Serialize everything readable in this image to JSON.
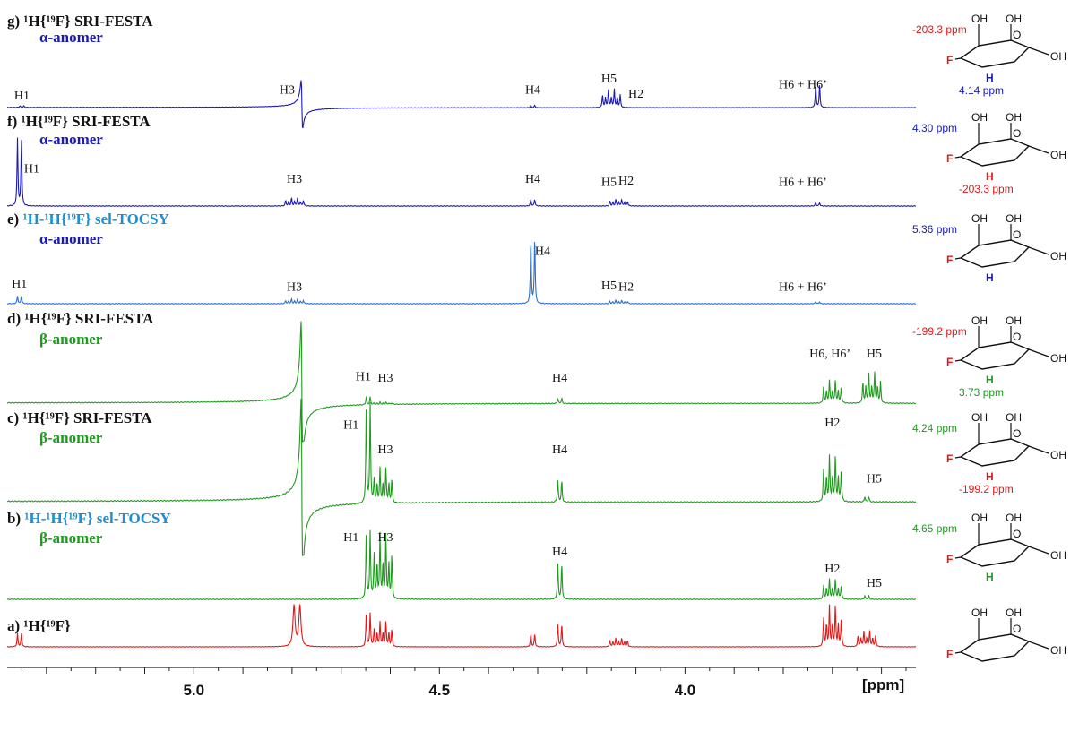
{
  "chart_data": {
    "type": "line",
    "xlabel": "[ppm]",
    "xlim": [
      5.38,
      3.53
    ],
    "ticks": [
      {
        "value": 5.0,
        "label": "5.0"
      },
      {
        "value": 4.5,
        "label": "4.5"
      },
      {
        "value": 4.0,
        "label": "4.0"
      }
    ],
    "colors": {
      "blue": "#1a1ab8",
      "lightblue": "#2a6fd1",
      "green": "#1f9a1f",
      "red": "#e01818",
      "cyan": "#1b8fd0"
    },
    "panels": [
      {
        "id": "g",
        "label": "g)",
        "title": "¹H{¹⁹F} SRI-FESTA",
        "title_color": "#111111",
        "anomer": "α-anomer",
        "anomer_color": "#1a1ab8",
        "color": "#1a1ab8",
        "peaks": [
          {
            "ppm": 5.35,
            "height": 0.04,
            "type": "doublet"
          },
          {
            "ppm": 4.78,
            "height": 0.6,
            "type": "dispersive"
          },
          {
            "ppm": 4.31,
            "height": 0.06,
            "type": "doublet"
          },
          {
            "ppm": 4.15,
            "height": 0.45,
            "type": "multiplet"
          },
          {
            "ppm": 3.73,
            "height": 0.55,
            "type": "doublet"
          }
        ],
        "annotations": [
          {
            "text": "H1",
            "ppm": 5.35,
            "level": 0.2
          },
          {
            "text": "H3",
            "ppm": 4.81,
            "level": 0.35
          },
          {
            "text": "H4",
            "ppm": 4.31,
            "level": 0.35
          },
          {
            "text": "H5",
            "ppm": 4.155,
            "level": 0.62
          },
          {
            "text": "H2",
            "ppm": 4.1,
            "level": 0.24
          },
          {
            "text": "H6 + H6’",
            "ppm": 3.76,
            "level": 0.48
          }
        ],
        "structure": {
          "shifts": [
            "-203.3 ppm",
            "4.14 ppm"
          ],
          "shift_colors": [
            "#e01818",
            "#1a1ab8"
          ],
          "atoms": [
            "F",
            "H"
          ]
        }
      },
      {
        "id": "f",
        "label": "f)",
        "title": "¹H{¹⁹F} SRI-FESTA",
        "title_color": "#111111",
        "anomer": "α-anomer",
        "anomer_color": "#1a1ab8",
        "color": "#1a1ab8",
        "peaks": [
          {
            "ppm": 5.355,
            "height": 1.0,
            "type": "doublet"
          },
          {
            "ppm": 4.795,
            "height": 0.12,
            "type": "multiplet"
          },
          {
            "ppm": 4.31,
            "height": 0.1,
            "type": "doublet"
          },
          {
            "ppm": 4.135,
            "height": 0.1,
            "type": "multiplet"
          },
          {
            "ppm": 3.73,
            "height": 0.05,
            "type": "doublet"
          }
        ],
        "annotations": [
          {
            "text": "H1",
            "ppm": 5.33,
            "level": 0.5
          },
          {
            "text": "H3",
            "ppm": 4.795,
            "level": 0.35
          },
          {
            "text": "H4",
            "ppm": 4.31,
            "level": 0.35
          },
          {
            "text": "H5",
            "ppm": 4.155,
            "level": 0.3
          },
          {
            "text": "H2",
            "ppm": 4.12,
            "level": 0.32
          },
          {
            "text": "H6 + H6’",
            "ppm": 3.76,
            "level": 0.3
          }
        ],
        "structure": {
          "shifts": [
            "4.30 ppm",
            "-203.3 ppm"
          ],
          "shift_colors": [
            "#1a1ab8",
            "#e01818"
          ],
          "atoms": [
            "H",
            "F"
          ]
        }
      },
      {
        "id": "e",
        "label": "e)",
        "title": "¹H-¹H{¹⁹F} sel-TOCSY",
        "title_color": "#1b8fd0",
        "anomer": "α-anomer",
        "anomer_color": "#1a1ab8",
        "color": "#2a6fd1",
        "peaks": [
          {
            "ppm": 5.355,
            "height": 0.12,
            "type": "doublet"
          },
          {
            "ppm": 4.795,
            "height": 0.07,
            "type": "multiplet"
          },
          {
            "ppm": 4.31,
            "height": 1.0,
            "type": "doublet"
          },
          {
            "ppm": 4.135,
            "height": 0.05,
            "type": "multiplet"
          },
          {
            "ppm": 3.73,
            "height": 0.03,
            "type": "doublet"
          }
        ],
        "annotations": [
          {
            "text": "H1",
            "ppm": 5.355,
            "level": 0.25
          },
          {
            "text": "H3",
            "ppm": 4.795,
            "level": 0.2
          },
          {
            "text": "H4",
            "ppm": 4.29,
            "level": 0.75
          },
          {
            "text": "H5",
            "ppm": 4.155,
            "level": 0.22
          },
          {
            "text": "H2",
            "ppm": 4.12,
            "level": 0.2
          },
          {
            "text": "H6 + H6’",
            "ppm": 3.76,
            "level": 0.2
          }
        ],
        "structure": {
          "shifts": [
            "5.36 ppm"
          ],
          "shift_colors": [
            "#1a1ab8"
          ],
          "atoms": [
            "F",
            "H"
          ]
        }
      },
      {
        "id": "d",
        "label": "d)",
        "title": "¹H{¹⁹F} SRI-FESTA",
        "title_color": "#111111",
        "anomer": "β-anomer",
        "anomer_color": "#1f9a1f",
        "color": "#1f9a1f",
        "peaks": [
          {
            "ppm": 4.78,
            "height": 0.95,
            "type": "dispersive"
          },
          {
            "ppm": 4.645,
            "height": 0.1,
            "type": "doublet"
          },
          {
            "ppm": 4.615,
            "height": 0.03,
            "type": "multiplet"
          },
          {
            "ppm": 4.255,
            "height": 0.07,
            "type": "doublet"
          },
          {
            "ppm": 3.7,
            "height": 0.3,
            "type": "multiplet"
          },
          {
            "ppm": 3.62,
            "height": 0.4,
            "type": "multiplet"
          }
        ],
        "annotations": [
          {
            "text": "H1",
            "ppm": 4.655,
            "level": 0.3
          },
          {
            "text": "H3",
            "ppm": 4.61,
            "level": 0.28
          },
          {
            "text": "H4",
            "ppm": 4.255,
            "level": 0.28
          },
          {
            "text": "H6, H6’",
            "ppm": 3.705,
            "level": 0.6
          },
          {
            "text": "H5",
            "ppm": 3.615,
            "level": 0.6
          }
        ],
        "structure": {
          "shifts": [
            "-199.2 ppm",
            "3.73 ppm"
          ],
          "shift_colors": [
            "#e01818",
            "#1f9a1f"
          ],
          "atoms": [
            "F",
            "H"
          ]
        }
      },
      {
        "id": "c",
        "label": "c)",
        "title": "¹H{¹⁹F} SRI-FESTA",
        "title_color": "#111111",
        "anomer": "β-anomer",
        "anomer_color": "#1f9a1f",
        "color": "#1f9a1f",
        "peaks": [
          {
            "ppm": 4.78,
            "height": 0.85,
            "type": "dispersive"
          },
          {
            "ppm": 4.645,
            "height": 0.92,
            "type": "doublet"
          },
          {
            "ppm": 4.615,
            "height": 0.32,
            "type": "multiplet"
          },
          {
            "ppm": 4.255,
            "height": 0.2,
            "type": "doublet"
          },
          {
            "ppm": 3.7,
            "height": 0.42,
            "type": "multiplet"
          },
          {
            "ppm": 3.63,
            "height": 0.05,
            "type": "doublet"
          }
        ],
        "annotations": [
          {
            "text": "H1",
            "ppm": 4.68,
            "level": 0.68
          },
          {
            "text": "H3",
            "ppm": 4.61,
            "level": 0.45
          },
          {
            "text": "H4",
            "ppm": 4.255,
            "level": 0.45
          },
          {
            "text": "H2",
            "ppm": 3.7,
            "level": 0.7
          },
          {
            "text": "H5",
            "ppm": 3.615,
            "level": 0.18
          }
        ],
        "structure": {
          "shifts": [
            "4.24 ppm",
            "-199.2 ppm"
          ],
          "shift_colors": [
            "#1f9a1f",
            "#e01818"
          ],
          "atoms": [
            "H",
            "F"
          ]
        }
      },
      {
        "id": "b",
        "label": "b)",
        "title": "¹H-¹H{¹⁹F} sel-TOCSY",
        "title_color": "#1b8fd0",
        "anomer": "β-anomer",
        "anomer_color": "#1f9a1f",
        "color": "#1f9a1f",
        "peaks": [
          {
            "ppm": 4.645,
            "height": 0.95,
            "type": "doublet"
          },
          {
            "ppm": 4.615,
            "height": 0.9,
            "type": "multiplet"
          },
          {
            "ppm": 4.255,
            "height": 0.5,
            "type": "doublet"
          },
          {
            "ppm": 3.7,
            "height": 0.28,
            "type": "multiplet"
          },
          {
            "ppm": 3.63,
            "height": 0.05,
            "type": "doublet"
          }
        ],
        "annotations": [
          {
            "text": "H1",
            "ppm": 4.68,
            "level": 0.82
          },
          {
            "text": "H3",
            "ppm": 4.61,
            "level": 0.82
          },
          {
            "text": "H4",
            "ppm": 4.255,
            "level": 0.62
          },
          {
            "text": "H2",
            "ppm": 3.7,
            "level": 0.38
          },
          {
            "text": "H5",
            "ppm": 3.615,
            "level": 0.18
          }
        ],
        "structure": {
          "shifts": [
            "4.65 ppm"
          ],
          "shift_colors": [
            "#1f9a1f"
          ],
          "atoms": [
            "F",
            "H"
          ]
        }
      },
      {
        "id": "a",
        "label": "a)",
        "title": "¹H{¹⁹F}",
        "title_color": "#111111",
        "anomer": "",
        "anomer_color": "#111111",
        "color": "#e01818",
        "peaks": [
          {
            "ppm": 5.355,
            "height": 0.3,
            "type": "doublet"
          },
          {
            "ppm": 4.79,
            "height": 1.0,
            "type": "broad"
          },
          {
            "ppm": 4.645,
            "height": 0.75,
            "type": "doublet"
          },
          {
            "ppm": 4.615,
            "height": 0.55,
            "type": "multiplet"
          },
          {
            "ppm": 4.31,
            "height": 0.28,
            "type": "doublet"
          },
          {
            "ppm": 4.255,
            "height": 0.5,
            "type": "doublet"
          },
          {
            "ppm": 4.135,
            "height": 0.2,
            "type": "multiplet"
          },
          {
            "ppm": 3.7,
            "height": 0.9,
            "type": "multiplet"
          },
          {
            "ppm": 3.63,
            "height": 0.35,
            "type": "multiplet"
          }
        ],
        "annotations": [],
        "structure": {
          "shifts": [],
          "shift_colors": [],
          "atoms": [
            "F"
          ]
        }
      }
    ]
  }
}
